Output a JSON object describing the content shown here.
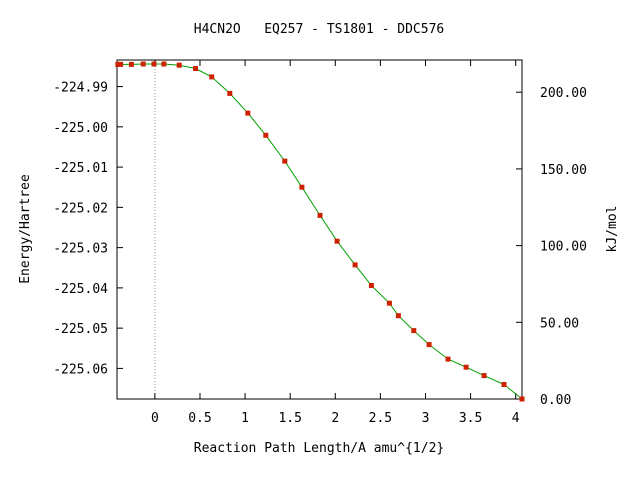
{
  "chart_data": {
    "type": "line",
    "title": "H4CN2O   EQ257 - TS1801 - DDC576",
    "xlabel": "Reaction Path Length/A amu^{1/2}",
    "ylabel": "Energy/Hartree",
    "y2label": "kJ/mol",
    "xlim": [
      -0.42,
      4.07
    ],
    "ylim": [
      -225.0676,
      -224.9834
    ],
    "y2lim": [
      0.0,
      221.0
    ],
    "x_ticks": [
      0,
      0.5,
      1,
      1.5,
      2,
      2.5,
      3,
      3.5,
      4
    ],
    "x_tick_labels": [
      "0",
      "0.5",
      "1",
      "1.5",
      "2",
      "2.5",
      "3",
      "3.5",
      "4"
    ],
    "y_ticks": [
      -224.99,
      -225.0,
      -225.01,
      -225.02,
      -225.03,
      -225.04,
      -225.05,
      -225.06
    ],
    "y_tick_labels": [
      "-224.99",
      "-225.00",
      "-225.01",
      "-225.02",
      "-225.03",
      "-225.04",
      "-225.05",
      "-225.06"
    ],
    "y2_ticks": [
      0,
      50,
      100,
      150,
      200
    ],
    "y2_tick_labels": [
      "0.00",
      "50.00",
      "100.00",
      "150.00",
      "200.00"
    ],
    "reference_line_x": 0,
    "line_color": "#00a000",
    "marker_color": "#cc2200",
    "series": [
      {
        "x": [
          -0.41,
          -0.38,
          -0.26,
          -0.13,
          -0.01,
          0.1,
          0.27,
          0.45,
          0.63,
          0.83,
          1.03,
          1.23,
          1.44,
          1.63,
          1.83,
          2.02,
          2.22,
          2.4,
          2.6,
          2.7,
          2.87,
          3.04,
          3.25,
          3.45,
          3.65,
          3.87,
          4.07
        ],
        "y": [
          -224.9845,
          -224.9845,
          -224.9845,
          -224.9844,
          -224.9844,
          -224.9844,
          -224.9847,
          -224.9855,
          -224.9876,
          -224.9917,
          -224.9966,
          -225.0021,
          -225.0085,
          -225.015,
          -225.022,
          -225.0284,
          -225.0343,
          -225.0394,
          -225.0438,
          -225.0469,
          -225.0506,
          -225.0541,
          -225.0577,
          -225.0597,
          -225.0618,
          -225.064,
          -225.0676
        ]
      }
    ]
  }
}
